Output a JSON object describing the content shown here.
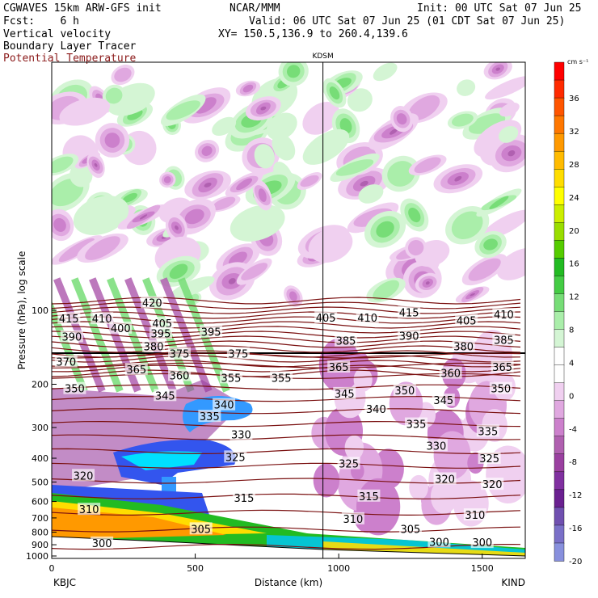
{
  "header": {
    "line1_left": "CGWAVES 15km ARW-GFS init",
    "line1_center": "NCAR/MMM",
    "line1_right": "Init: 00 UTC Sat 07 Jun 25",
    "line2_left": "Fcst:    6 h",
    "line2_right": "Valid: 06 UTC Sat 07 Jun 25 (01 CDT Sat 07 Jun 25)",
    "line3_left": "Vertical velocity",
    "line3_right": "XY= 150.5,136.9 to 260.4,139.6",
    "line4_left": "Boundary Layer Tracer",
    "line5_left": "Potential Temperature"
  },
  "chart_data": {
    "type": "heatmap",
    "xlabel": "Distance (km)",
    "ylabel": "Pressure (hPa), log scale",
    "xlim": [
      0,
      1650
    ],
    "ylim": [
      1000,
      10
    ],
    "x_ticks": [
      0,
      500,
      1000,
      1500
    ],
    "y_ticks": [
      100,
      200,
      300,
      400,
      500,
      600,
      700,
      800,
      900,
      1000
    ],
    "left_endpoint": "KBJC",
    "right_endpoint": "KIND",
    "midpoint_label": "KDSM",
    "midpoint_x": 945,
    "tropopause_pressure": 150,
    "colorbar": {
      "unit": "cm s⁻¹",
      "labels": [
        "36",
        "32",
        "28",
        "24",
        "20",
        "16",
        "12",
        "8",
        "4",
        "0",
        "-4",
        "-8",
        "-12",
        "-16",
        "-20"
      ],
      "colors": [
        "#ff0000",
        "#ff2a00",
        "#ff5500",
        "#ff7700",
        "#ff9900",
        "#ffbb00",
        "#ffdd00",
        "#ffff00",
        "#ccee00",
        "#99dd00",
        "#55cc00",
        "#22bb22",
        "#44cc44",
        "#77dd77",
        "#aaeeaa",
        "#d4f5d4",
        "#ffffff",
        "#ffffff",
        "#f0d0f0",
        "#e0a8e0",
        "#cc80cc",
        "#b060b0",
        "#9a40a0",
        "#8030a0",
        "#6a2090",
        "#7050b0",
        "#7a70c8",
        "#8890dd"
      ]
    },
    "theta_labels": [
      {
        "v": "415",
        "x": 60,
        "p": 108
      },
      {
        "v": "410",
        "x": 175,
        "p": 108
      },
      {
        "v": "400",
        "x": 240,
        "p": 118
      },
      {
        "v": "405",
        "x": 385,
        "p": 113
      },
      {
        "v": "420",
        "x": 350,
        "p": 93
      },
      {
        "v": "395",
        "x": 380,
        "p": 124
      },
      {
        "v": "395",
        "x": 555,
        "p": 122
      },
      {
        "v": "390",
        "x": 70,
        "p": 128
      },
      {
        "v": "380",
        "x": 355,
        "p": 140
      },
      {
        "v": "375",
        "x": 445,
        "p": 150
      },
      {
        "v": "375",
        "x": 650,
        "p": 150
      },
      {
        "v": "405",
        "x": 955,
        "p": 107
      },
      {
        "v": "410",
        "x": 1100,
        "p": 107
      },
      {
        "v": "415",
        "x": 1245,
        "p": 102
      },
      {
        "v": "405",
        "x": 1445,
        "p": 110
      },
      {
        "v": "410",
        "x": 1575,
        "p": 104
      },
      {
        "v": "385",
        "x": 1025,
        "p": 133
      },
      {
        "v": "390",
        "x": 1245,
        "p": 127
      },
      {
        "v": "380",
        "x": 1435,
        "p": 140
      },
      {
        "v": "385",
        "x": 1575,
        "p": 132
      },
      {
        "v": "370",
        "x": 50,
        "p": 162
      },
      {
        "v": "365",
        "x": 295,
        "p": 174
      },
      {
        "v": "360",
        "x": 445,
        "p": 184
      },
      {
        "v": "355",
        "x": 625,
        "p": 188
      },
      {
        "v": "355",
        "x": 800,
        "p": 188
      },
      {
        "v": "365",
        "x": 1000,
        "p": 170
      },
      {
        "v": "360",
        "x": 1390,
        "p": 180
      },
      {
        "v": "365",
        "x": 1570,
        "p": 170
      },
      {
        "v": "350",
        "x": 80,
        "p": 208
      },
      {
        "v": "345",
        "x": 395,
        "p": 222
      },
      {
        "v": "345",
        "x": 1020,
        "p": 218
      },
      {
        "v": "350",
        "x": 1230,
        "p": 212
      },
      {
        "v": "345",
        "x": 1365,
        "p": 232
      },
      {
        "v": "350",
        "x": 1565,
        "p": 208
      },
      {
        "v": "340",
        "x": 600,
        "p": 242
      },
      {
        "v": "340",
        "x": 1130,
        "p": 252
      },
      {
        "v": "335",
        "x": 550,
        "p": 270
      },
      {
        "v": "335",
        "x": 1270,
        "p": 290
      },
      {
        "v": "335",
        "x": 1520,
        "p": 310
      },
      {
        "v": "330",
        "x": 660,
        "p": 320
      },
      {
        "v": "330",
        "x": 1340,
        "p": 355
      },
      {
        "v": "325",
        "x": 640,
        "p": 395
      },
      {
        "v": "325",
        "x": 1035,
        "p": 420
      },
      {
        "v": "325",
        "x": 1525,
        "p": 400
      },
      {
        "v": "320",
        "x": 110,
        "p": 470
      },
      {
        "v": "320",
        "x": 1370,
        "p": 485
      },
      {
        "v": "320",
        "x": 1535,
        "p": 510
      },
      {
        "v": "315",
        "x": 670,
        "p": 580
      },
      {
        "v": "315",
        "x": 1105,
        "p": 570
      },
      {
        "v": "310",
        "x": 130,
        "p": 645
      },
      {
        "v": "310",
        "x": 1050,
        "p": 705
      },
      {
        "v": "310",
        "x": 1475,
        "p": 680
      },
      {
        "v": "305",
        "x": 520,
        "p": 775
      },
      {
        "v": "305",
        "x": 1250,
        "p": 775
      },
      {
        "v": "300",
        "x": 175,
        "p": 885
      },
      {
        "v": "300",
        "x": 1350,
        "p": 875
      },
      {
        "v": "300",
        "x": 1500,
        "p": 880
      }
    ]
  }
}
